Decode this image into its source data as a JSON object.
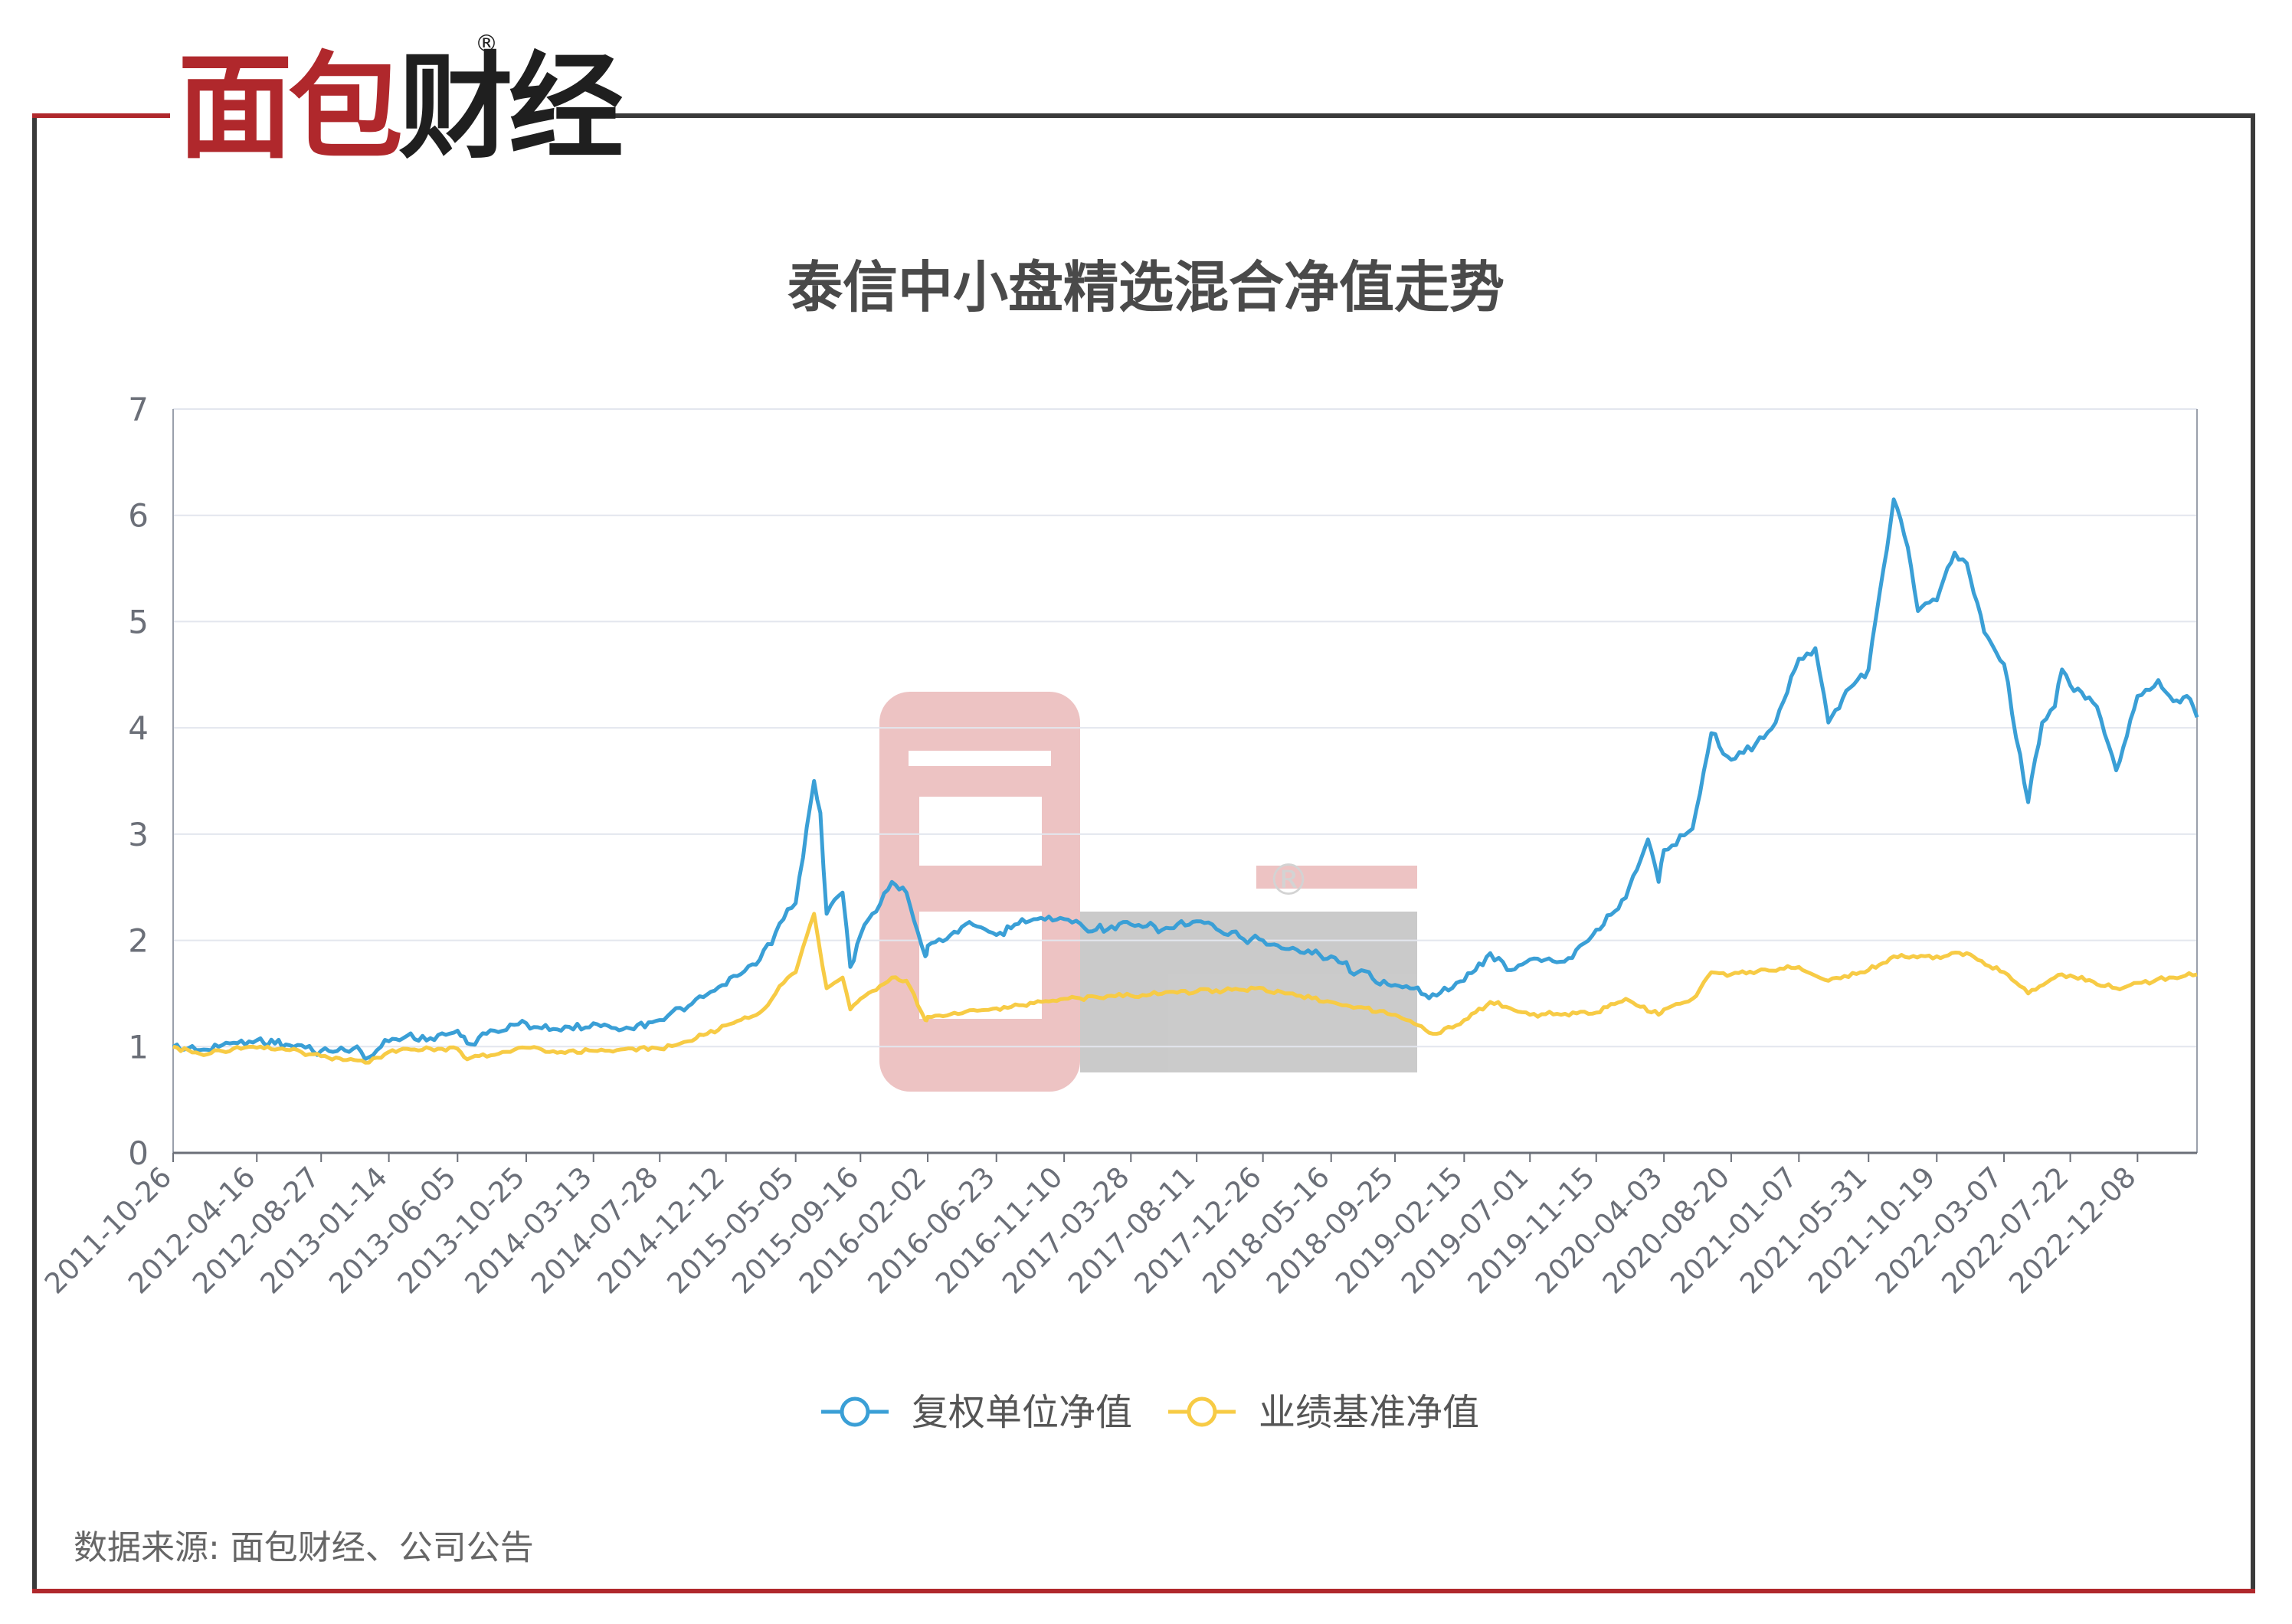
{
  "brand": {
    "logo_text_red": "面包",
    "logo_text_dark": "财经",
    "registered_mark": "®"
  },
  "title": "泰信中小盘精选混合净值走势",
  "source_note": "数据来源: 面包财经、公司公告",
  "chart_data": {
    "type": "line",
    "title": "泰信中小盘精选混合净值走势",
    "x_tick_labels": [
      "2011-10-26",
      "2012-04-16",
      "2012-08-27",
      "2013-01-14",
      "2013-06-05",
      "2013-10-25",
      "2014-03-13",
      "2014-07-28",
      "2014-12-12",
      "2015-05-05",
      "2015-09-16",
      "2016-02-02",
      "2016-06-23",
      "2016-11-10",
      "2017-03-28",
      "2017-08-11",
      "2017-12-26",
      "2018-05-16",
      "2018-09-25",
      "2019-02-15",
      "2019-07-01",
      "2019-11-15",
      "2020-04-03",
      "2020-08-20",
      "2021-01-07",
      "2021-05-31",
      "2021-10-19",
      "2022-03-07",
      "2022-07-22",
      "2022-12-08"
    ],
    "x_range": [
      "2011-10-26",
      "2023-04-10"
    ],
    "ylim": [
      0,
      7
    ],
    "y_ticks": [
      0,
      1,
      2,
      3,
      4,
      5,
      6,
      7
    ],
    "grid": "horizontal",
    "legend_position": "bottom-center",
    "series": [
      {
        "name": "复权单位净值",
        "color": "#3a9fd6",
        "points": [
          [
            "2011-10-26",
            1.0
          ],
          [
            "2012-01-05",
            0.97
          ],
          [
            "2012-02-20",
            1.03
          ],
          [
            "2012-04-16",
            1.06
          ],
          [
            "2012-06-15",
            1.02
          ],
          [
            "2012-08-27",
            0.96
          ],
          [
            "2012-11-01",
            0.98
          ],
          [
            "2012-12-04",
            0.9
          ],
          [
            "2013-01-14",
            1.05
          ],
          [
            "2013-02-20",
            1.1
          ],
          [
            "2013-04-10",
            1.08
          ],
          [
            "2013-06-05",
            1.15
          ],
          [
            "2013-06-25",
            1.03
          ],
          [
            "2013-08-20",
            1.15
          ],
          [
            "2013-10-25",
            1.22
          ],
          [
            "2014-01-05",
            1.15
          ],
          [
            "2014-03-13",
            1.22
          ],
          [
            "2014-05-20",
            1.18
          ],
          [
            "2014-07-28",
            1.25
          ],
          [
            "2014-09-25",
            1.38
          ],
          [
            "2014-12-12",
            1.58
          ],
          [
            "2015-02-20",
            1.82
          ],
          [
            "2015-04-10",
            2.2
          ],
          [
            "2015-05-05",
            2.35
          ],
          [
            "2015-06-12",
            3.5
          ],
          [
            "2015-06-25",
            3.2
          ],
          [
            "2015-07-08",
            2.25
          ],
          [
            "2015-08-10",
            2.45
          ],
          [
            "2015-08-26",
            1.75
          ],
          [
            "2015-09-16",
            2.05
          ],
          [
            "2015-11-20",
            2.55
          ],
          [
            "2015-12-20",
            2.45
          ],
          [
            "2016-01-28",
            1.85
          ],
          [
            "2016-02-02",
            1.95
          ],
          [
            "2016-03-20",
            2.05
          ],
          [
            "2016-04-20",
            2.15
          ],
          [
            "2016-06-23",
            2.05
          ],
          [
            "2016-08-15",
            2.2
          ],
          [
            "2016-11-10",
            2.2
          ],
          [
            "2017-01-15",
            2.1
          ],
          [
            "2017-03-28",
            2.15
          ],
          [
            "2017-06-01",
            2.1
          ],
          [
            "2017-08-11",
            2.18
          ],
          [
            "2017-10-15",
            2.05
          ],
          [
            "2017-12-26",
            2.0
          ],
          [
            "2018-02-10",
            1.92
          ],
          [
            "2018-05-16",
            1.85
          ],
          [
            "2018-07-10",
            1.7
          ],
          [
            "2018-09-25",
            1.58
          ],
          [
            "2018-12-20",
            1.48
          ],
          [
            "2019-02-15",
            1.62
          ],
          [
            "2019-04-10",
            1.88
          ],
          [
            "2019-05-15",
            1.72
          ],
          [
            "2019-07-01",
            1.82
          ],
          [
            "2019-09-10",
            1.8
          ],
          [
            "2019-11-15",
            2.1
          ],
          [
            "2020-01-15",
            2.4
          ],
          [
            "2020-03-01",
            2.95
          ],
          [
            "2020-03-23",
            2.55
          ],
          [
            "2020-04-03",
            2.85
          ],
          [
            "2020-06-01",
            3.05
          ],
          [
            "2020-07-10",
            3.95
          ],
          [
            "2020-08-20",
            3.7
          ],
          [
            "2020-10-10",
            3.85
          ],
          [
            "2020-11-20",
            4.05
          ],
          [
            "2021-01-07",
            4.65
          ],
          [
            "2021-02-10",
            4.75
          ],
          [
            "2021-03-09",
            4.05
          ],
          [
            "2021-04-15",
            4.35
          ],
          [
            "2021-05-31",
            4.55
          ],
          [
            "2021-07-01",
            5.5
          ],
          [
            "2021-07-22",
            6.15
          ],
          [
            "2021-08-20",
            5.7
          ],
          [
            "2021-09-10",
            5.1
          ],
          [
            "2021-10-19",
            5.2
          ],
          [
            "2021-11-25",
            5.65
          ],
          [
            "2021-12-20",
            5.55
          ],
          [
            "2022-01-25",
            4.9
          ],
          [
            "2022-03-07",
            4.6
          ],
          [
            "2022-04-26",
            3.3
          ],
          [
            "2022-05-25",
            4.05
          ],
          [
            "2022-06-20",
            4.2
          ],
          [
            "2022-07-05",
            4.55
          ],
          [
            "2022-07-22",
            4.4
          ],
          [
            "2022-09-15",
            4.2
          ],
          [
            "2022-10-25",
            3.6
          ],
          [
            "2022-12-08",
            4.3
          ],
          [
            "2023-01-20",
            4.45
          ],
          [
            "2023-02-20",
            4.25
          ],
          [
            "2023-03-20",
            4.3
          ],
          [
            "2023-04-10",
            4.1
          ]
        ]
      },
      {
        "name": "业绩基准净值",
        "color": "#f7cb45",
        "points": [
          [
            "2011-10-26",
            1.0
          ],
          [
            "2011-12-28",
            0.92
          ],
          [
            "2012-02-27",
            0.98
          ],
          [
            "2012-04-16",
            0.99
          ],
          [
            "2012-06-15",
            0.97
          ],
          [
            "2012-08-27",
            0.91
          ],
          [
            "2012-12-04",
            0.85
          ],
          [
            "2013-01-14",
            0.95
          ],
          [
            "2013-02-20",
            0.98
          ],
          [
            "2013-06-05",
            0.98
          ],
          [
            "2013-06-25",
            0.88
          ],
          [
            "2013-10-25",
            0.99
          ],
          [
            "2014-01-05",
            0.95
          ],
          [
            "2014-03-13",
            0.96
          ],
          [
            "2014-07-28",
            0.98
          ],
          [
            "2014-09-25",
            1.05
          ],
          [
            "2014-12-12",
            1.2
          ],
          [
            "2015-02-20",
            1.32
          ],
          [
            "2015-04-10",
            1.6
          ],
          [
            "2015-05-05",
            1.7
          ],
          [
            "2015-06-12",
            2.25
          ],
          [
            "2015-07-08",
            1.55
          ],
          [
            "2015-08-10",
            1.65
          ],
          [
            "2015-08-26",
            1.35
          ],
          [
            "2015-09-16",
            1.45
          ],
          [
            "2015-11-20",
            1.65
          ],
          [
            "2015-12-20",
            1.62
          ],
          [
            "2016-01-28",
            1.25
          ],
          [
            "2016-02-02",
            1.28
          ],
          [
            "2016-06-23",
            1.36
          ],
          [
            "2016-11-10",
            1.45
          ],
          [
            "2017-03-28",
            1.48
          ],
          [
            "2017-08-11",
            1.52
          ],
          [
            "2017-12-26",
            1.55
          ],
          [
            "2018-02-10",
            1.5
          ],
          [
            "2018-05-16",
            1.42
          ],
          [
            "2018-09-25",
            1.3
          ],
          [
            "2018-12-20",
            1.12
          ],
          [
            "2019-02-15",
            1.25
          ],
          [
            "2019-04-10",
            1.42
          ],
          [
            "2019-07-01",
            1.3
          ],
          [
            "2019-11-15",
            1.32
          ],
          [
            "2020-01-15",
            1.45
          ],
          [
            "2020-03-23",
            1.3
          ],
          [
            "2020-04-03",
            1.35
          ],
          [
            "2020-06-01",
            1.45
          ],
          [
            "2020-07-10",
            1.7
          ],
          [
            "2020-08-20",
            1.68
          ],
          [
            "2021-01-07",
            1.75
          ],
          [
            "2021-03-09",
            1.62
          ],
          [
            "2021-05-31",
            1.72
          ],
          [
            "2021-07-22",
            1.85
          ],
          [
            "2021-10-19",
            1.85
          ],
          [
            "2021-12-20",
            1.88
          ],
          [
            "2022-03-07",
            1.7
          ],
          [
            "2022-04-26",
            1.5
          ],
          [
            "2022-07-05",
            1.68
          ],
          [
            "2022-07-22",
            1.67
          ],
          [
            "2022-10-25",
            1.55
          ],
          [
            "2022-12-08",
            1.6
          ],
          [
            "2023-02-20",
            1.65
          ],
          [
            "2023-04-10",
            1.68
          ]
        ]
      }
    ]
  }
}
